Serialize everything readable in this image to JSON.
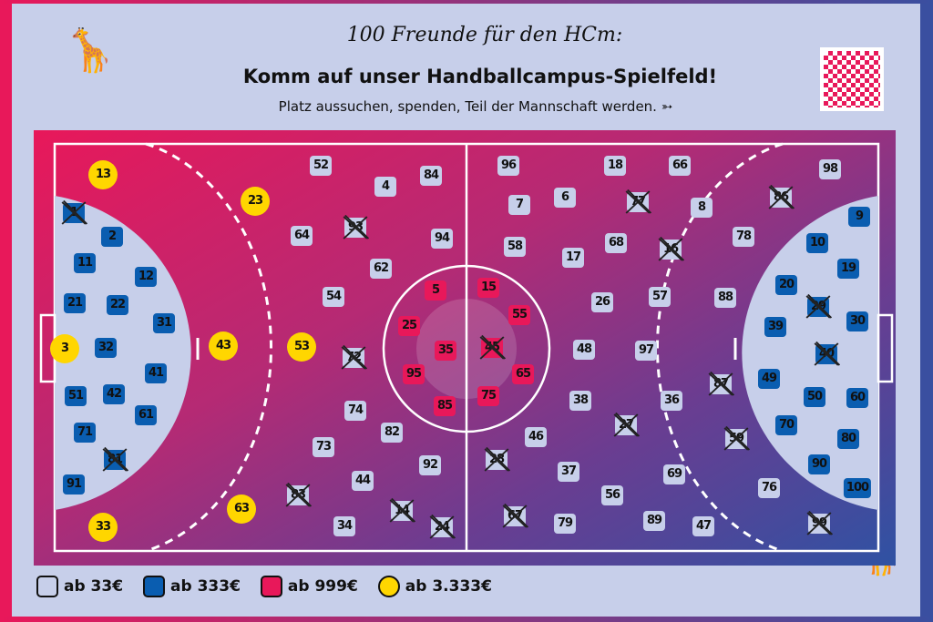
{
  "header": {
    "handwritten": "100 Freunde für den HCm:",
    "title": "Komm auf unser Handballcampus-Spielfeld!",
    "subtitle": "Platz aussuchen, spenden, Teil der Mannschaft werden."
  },
  "colors": {
    "light": "#c7cfea",
    "blue": "#0a5db0",
    "red": "#e8185a",
    "gold": "#ffd600"
  },
  "legend": [
    {
      "tier": "light",
      "label": "ab 33€"
    },
    {
      "tier": "blue",
      "label": "ab 333€"
    },
    {
      "tier": "red",
      "label": "ab 999€"
    },
    {
      "tier": "gold",
      "label": "ab 3.333€"
    }
  ],
  "gold": [
    3,
    13,
    23,
    33,
    43,
    53,
    63
  ],
  "blue": [
    1,
    2,
    9,
    10,
    11,
    12,
    19,
    20,
    21,
    22,
    29,
    30,
    31,
    32,
    39,
    40,
    41,
    42,
    49,
    50,
    51,
    60,
    61,
    70,
    71,
    80,
    81,
    90,
    91,
    100
  ],
  "red": [
    5,
    15,
    25,
    35,
    45,
    55,
    65,
    75,
    85,
    95
  ],
  "taken": [
    1,
    14,
    16,
    24,
    27,
    28,
    29,
    40,
    45,
    59,
    67,
    72,
    77,
    81,
    83,
    86,
    87,
    93,
    99
  ],
  "icons": [
    "giraffe-mascot",
    "qr-code",
    "paper-plane-icon",
    "handball-logo"
  ]
}
